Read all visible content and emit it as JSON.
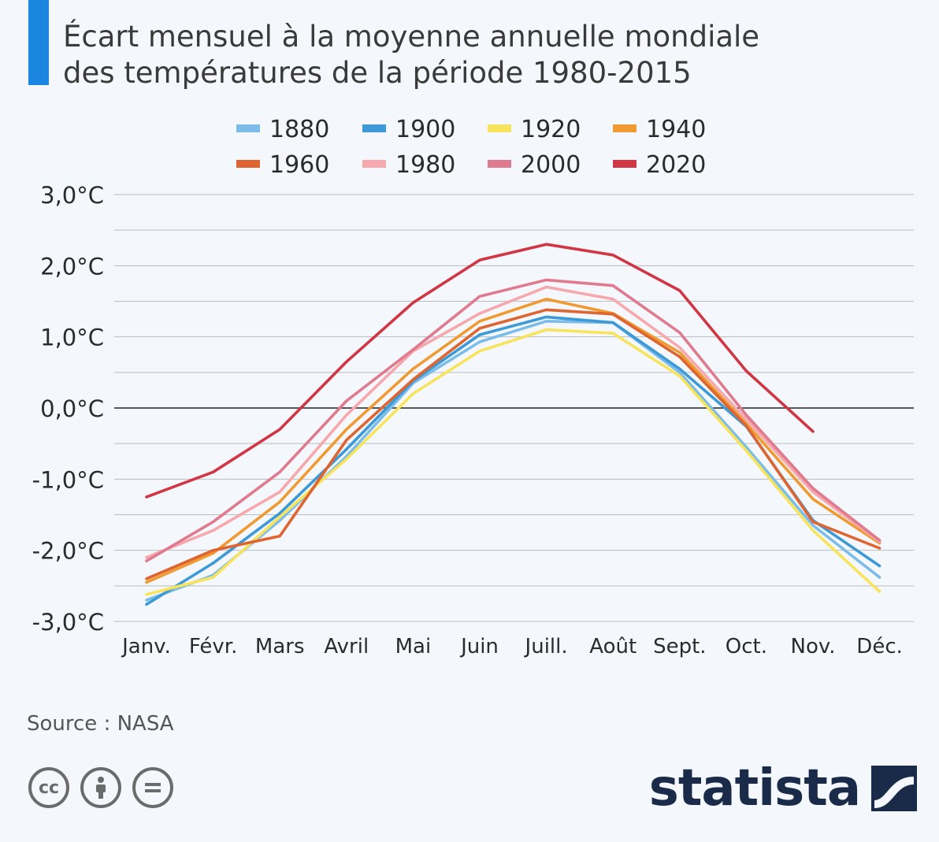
{
  "header": {
    "title_line1": "Écart mensuel à la moyenne annuelle mondiale",
    "title_line2": "des températures de la période 1980-2015",
    "accent_color": "#1a86e0"
  },
  "source": "Source : NASA",
  "license_icons": [
    "cc-icon",
    "attribution-icon",
    "no-derivatives-icon"
  ],
  "brand": {
    "name": "statista",
    "color": "#1a2b4a"
  },
  "chart_data": {
    "type": "line",
    "title": "",
    "xlabel": "",
    "ylabel": "",
    "categories": [
      "Janv.",
      "Févr.",
      "Mars",
      "Avril",
      "Mai",
      "Juin",
      "Juill.",
      "Août",
      "Sept.",
      "Oct.",
      "Nov.",
      "Déc."
    ],
    "ylim": [
      -3.0,
      3.0
    ],
    "yticks": [
      3.0,
      2.0,
      1.0,
      0.0,
      -1.0,
      -2.0,
      -3.0
    ],
    "ytick_labels": [
      "3,0°C",
      "2,0°C",
      "1,0°C",
      "0,0°C",
      "-1,0°C",
      "-2,0°C",
      "-3,0°C"
    ],
    "grid": true,
    "legend_position": "top",
    "series": [
      {
        "name": "1880",
        "color": "#7bbde8",
        "values": [
          -2.7,
          -2.35,
          -1.58,
          -0.68,
          0.35,
          0.93,
          1.22,
          1.2,
          0.5,
          -0.55,
          -1.65,
          -2.38
        ]
      },
      {
        "name": "1900",
        "color": "#3d9ad6",
        "values": [
          -2.76,
          -2.18,
          -1.48,
          -0.58,
          0.38,
          1.03,
          1.28,
          1.2,
          0.55,
          -0.26,
          -1.58,
          -2.22
        ]
      },
      {
        "name": "1920",
        "color": "#f7e45c",
        "values": [
          -2.62,
          -2.38,
          -1.53,
          -0.72,
          0.2,
          0.8,
          1.1,
          1.05,
          0.45,
          -0.6,
          -1.72,
          -2.58
        ]
      },
      {
        "name": "1940",
        "color": "#f09a32",
        "values": [
          -2.45,
          -2.04,
          -1.32,
          -0.3,
          0.55,
          1.22,
          1.53,
          1.33,
          0.78,
          -0.22,
          -1.28,
          -1.9
        ]
      },
      {
        "name": "1960",
        "color": "#de6530",
        "values": [
          -2.4,
          -2.0,
          -1.8,
          -0.45,
          0.4,
          1.12,
          1.38,
          1.32,
          0.72,
          -0.25,
          -1.6,
          -1.97
        ]
      },
      {
        "name": "1980",
        "color": "#f7a8ad",
        "values": [
          -2.1,
          -1.72,
          -1.18,
          -0.1,
          0.8,
          1.33,
          1.7,
          1.53,
          0.85,
          -0.16,
          -1.18,
          -1.88
        ]
      },
      {
        "name": "2000",
        "color": "#e07a8e",
        "values": [
          -2.15,
          -1.6,
          -0.9,
          0.1,
          0.82,
          1.57,
          1.8,
          1.72,
          1.06,
          -0.1,
          -1.13,
          -1.86
        ]
      },
      {
        "name": "2020",
        "color": "#d13645",
        "values": [
          -1.25,
          -0.9,
          -0.3,
          0.65,
          1.48,
          2.08,
          2.3,
          2.15,
          1.65,
          0.52,
          -0.33,
          null
        ]
      }
    ]
  }
}
